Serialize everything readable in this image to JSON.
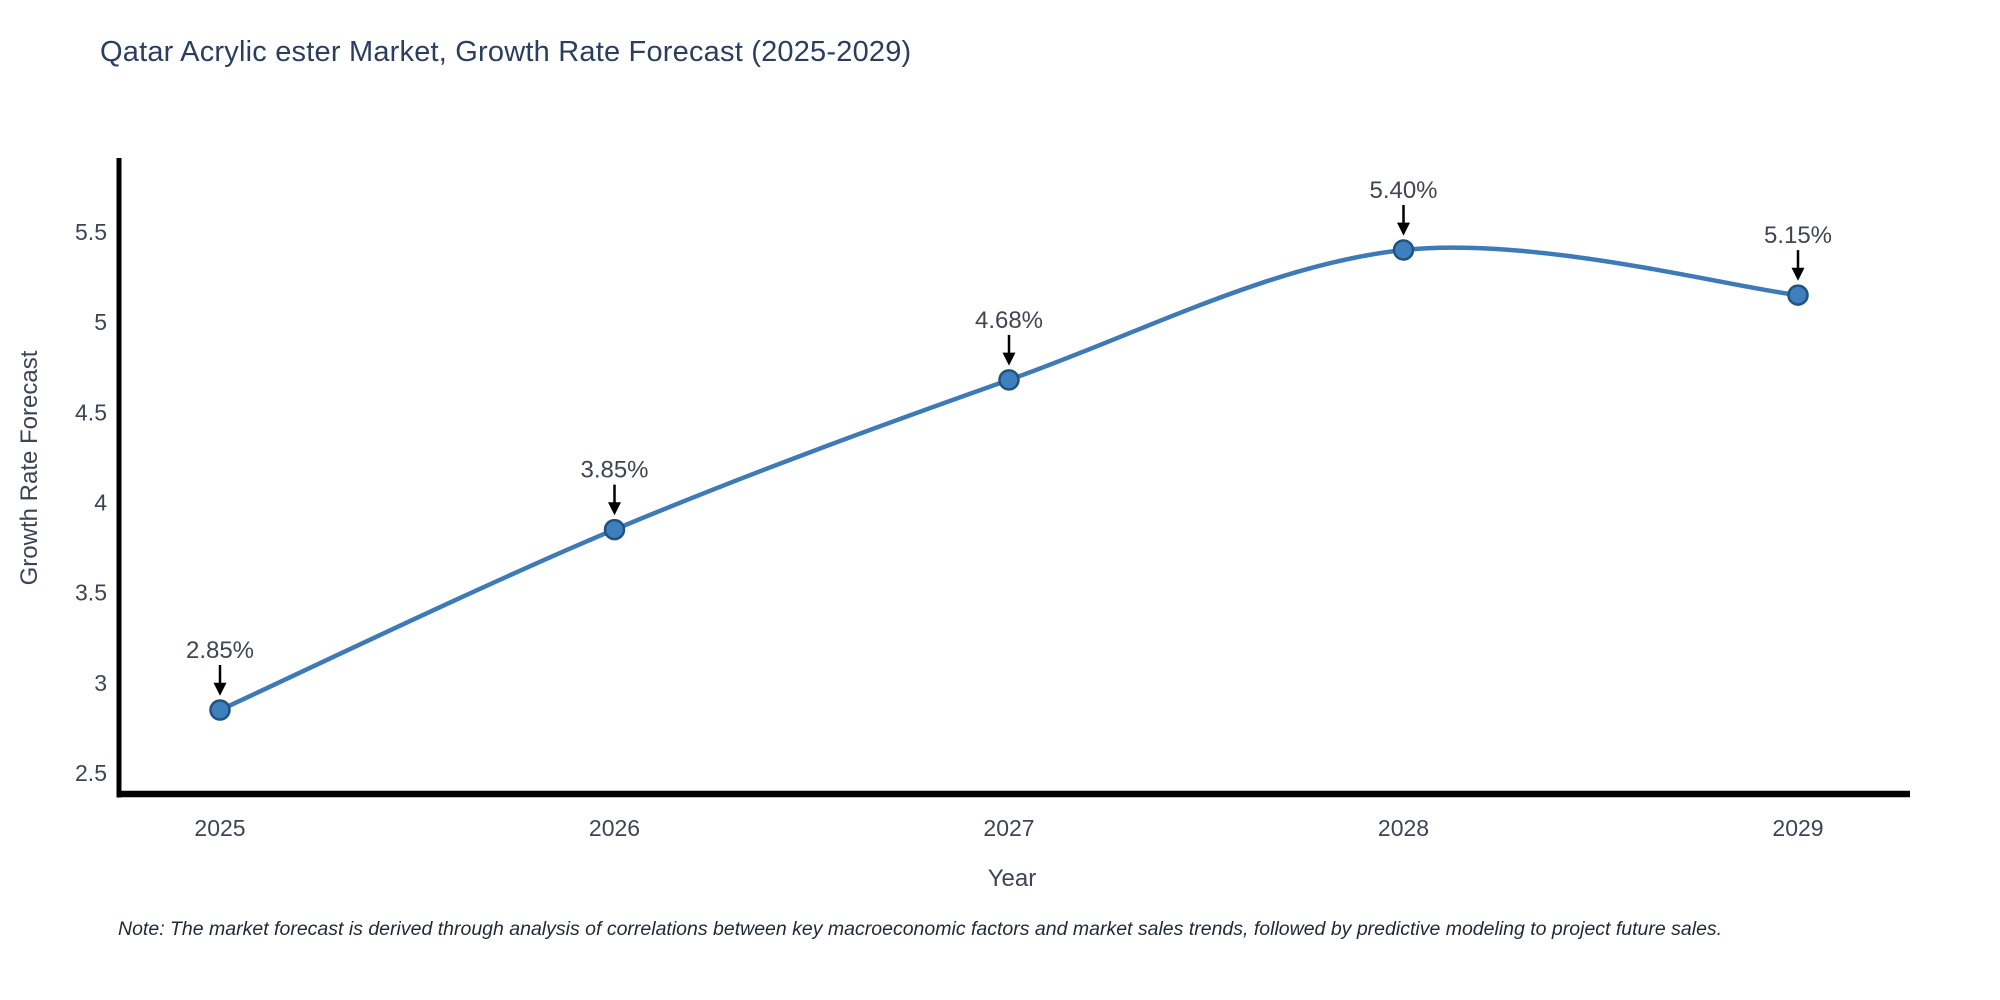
{
  "note": {
    "text": "Note: The market forecast is derived through analysis of correlations between key macroeconomic factors and market sales trends, followed by predictive modeling to project future sales."
  },
  "chart_data": {
    "type": "line",
    "title": "Qatar Acrylic ester Market, Growth Rate Forecast (2025-2029)",
    "xlabel": "Year",
    "ylabel": "Growth Rate Forecast",
    "categories": [
      "2025",
      "2026",
      "2027",
      "2028",
      "2029"
    ],
    "values": [
      2.85,
      3.85,
      4.68,
      5.4,
      5.15
    ],
    "point_labels": [
      "2.85%",
      "3.85%",
      "4.68%",
      "5.40%",
      "5.15%"
    ],
    "yticks": [
      "2.5",
      "3",
      "3.5",
      "4",
      "4.5",
      "5",
      "5.5"
    ],
    "ytick_values": [
      2.5,
      3,
      3.5,
      4,
      4.5,
      5,
      5.5
    ],
    "ylim": [
      2.35,
      5.9
    ],
    "line_shape": "spline",
    "grid": false,
    "legend_position": "none",
    "markers": true,
    "colors": {
      "line": "#3d7ab7",
      "marker_fill": "#3e7fbd",
      "marker_edge": "#205282",
      "axis": "#000000",
      "annotation_arrow": "#000000",
      "annotation_text": "#3f4552",
      "tick_text": "#3b4554",
      "title_text": "#2a3f5f",
      "background": "#ffffff"
    }
  }
}
